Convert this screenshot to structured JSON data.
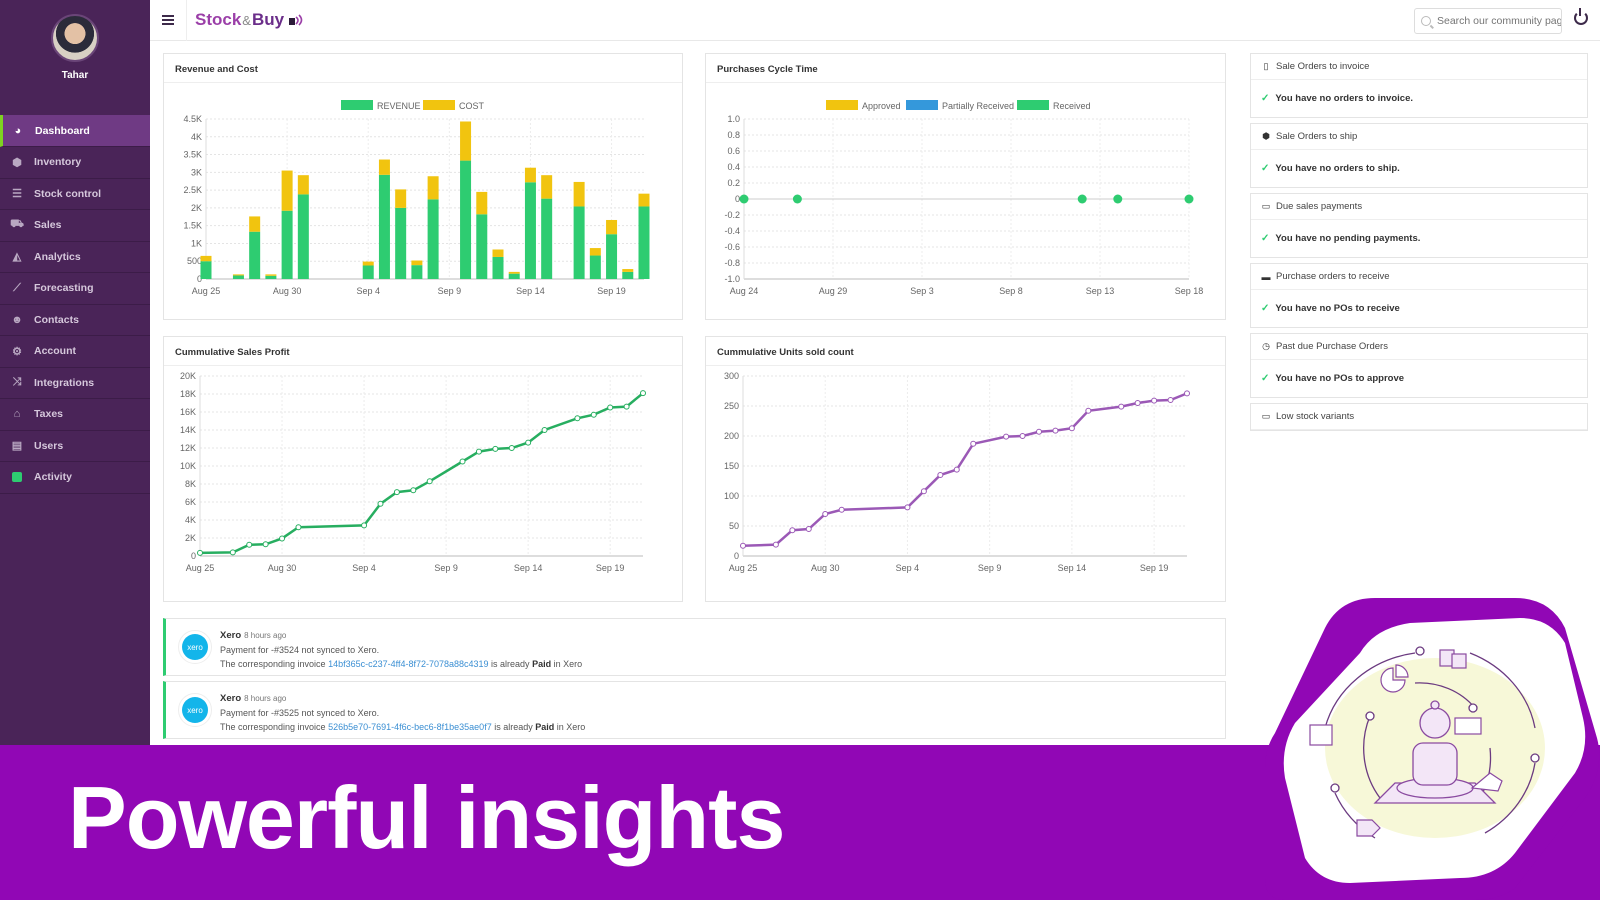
{
  "sidebar": {
    "user_name": "Tahar",
    "items": [
      {
        "label": "Dashboard",
        "icon": "dashboard-icon",
        "active": true
      },
      {
        "label": "Inventory",
        "icon": "cube-icon"
      },
      {
        "label": "Stock control",
        "icon": "sliders-icon"
      },
      {
        "label": "Sales",
        "icon": "cart-icon"
      },
      {
        "label": "Analytics",
        "icon": "area-chart-icon"
      },
      {
        "label": "Forecasting",
        "icon": "line-chart-icon"
      },
      {
        "label": "Contacts",
        "icon": "users-icon"
      },
      {
        "label": "Account",
        "icon": "cogs-icon"
      },
      {
        "label": "Integrations",
        "icon": "random-icon"
      },
      {
        "label": "Taxes",
        "icon": "bank-icon"
      },
      {
        "label": "Users",
        "icon": "building-icon"
      },
      {
        "label": "Activity",
        "icon": "green-square-icon"
      }
    ]
  },
  "header": {
    "logo": {
      "part1": "Stock",
      "part2": "&",
      "part3": "Buy"
    },
    "search_placeholder": "Search our community pag"
  },
  "colors": {
    "revenue": "#2ecc71",
    "cost": "#f1c40f",
    "approved": "#f1c40f",
    "partially_received": "#3498db",
    "received": "#2ecc71",
    "profit_line": "#27ae60",
    "units_line": "#9b59b6",
    "brand_purple": "#9107b5",
    "sidebar": "#4a2458"
  },
  "chart_data": [
    {
      "type": "bar",
      "stacked": true,
      "title": "Revenue and Cost",
      "categories": [
        "Aug 25",
        "Aug 27",
        "Aug 28",
        "Aug 29",
        "Aug 30",
        "Aug 31",
        "Sep 4",
        "Sep 5",
        "Sep 6",
        "Sep 7",
        "Sep 8",
        "Sep 10",
        "Sep 11",
        "Sep 12",
        "Sep 13",
        "Sep 14",
        "Sep 15",
        "Sep 17",
        "Sep 18",
        "Sep 19",
        "Sep 20",
        "Sep 21"
      ],
      "day_offsets": [
        0,
        2,
        3,
        4,
        5,
        6,
        10,
        11,
        12,
        13,
        14,
        16,
        17,
        18,
        19,
        20,
        21,
        23,
        24,
        25,
        26,
        27
      ],
      "series": [
        {
          "name": "REVENUE",
          "values": [
            500,
            100,
            1330,
            90,
            1920,
            2380,
            380,
            2930,
            2000,
            390,
            2240,
            3330,
            1820,
            620,
            150,
            2720,
            2260,
            2040,
            660,
            1260,
            200,
            2040
          ]
        },
        {
          "name": "COST",
          "values": [
            150,
            30,
            430,
            40,
            1130,
            540,
            110,
            430,
            520,
            130,
            650,
            1100,
            630,
            210,
            50,
            410,
            660,
            690,
            210,
            400,
            80,
            360
          ]
        }
      ],
      "yticks": [
        "0",
        "500",
        "1K",
        "1.5K",
        "2K",
        "2.5K",
        "3K",
        "3.5K",
        "4K",
        "4.5K"
      ],
      "xticks": [
        "Aug 25",
        "Aug 30",
        "Sep 4",
        "Sep 9",
        "Sep 14",
        "Sep 19"
      ],
      "ylim": [
        0,
        4500
      ],
      "legend": "top-center",
      "grid": true
    },
    {
      "type": "scatter",
      "title": "Purchases Cycle Time",
      "series": [
        {
          "name": "Approved",
          "values": []
        },
        {
          "name": "Partially Received",
          "values": []
        },
        {
          "name": "Received",
          "x": [
            "Aug 24",
            "Aug 27",
            "Sep 12",
            "Sep 14",
            "Sep 18"
          ],
          "day_offsets": [
            0,
            3,
            19,
            21,
            25
          ],
          "values": [
            0,
            0,
            0,
            0,
            0
          ]
        }
      ],
      "yticks": [
        "1.0",
        "0.8",
        "0.6",
        "0.4",
        "0.2",
        "0",
        "-0.2",
        "-0.4",
        "-0.6",
        "-0.8",
        "-1.0"
      ],
      "xticks": [
        "Aug 24",
        "Aug 29",
        "Sep 3",
        "Sep 8",
        "Sep 13",
        "Sep 18"
      ],
      "ylim": [
        -1,
        1
      ],
      "legend": "top-center",
      "grid": true
    },
    {
      "type": "line",
      "title": "Cummulative Sales Profit",
      "x": [
        "Aug 25",
        "Aug 27",
        "Aug 28",
        "Aug 29",
        "Aug 30",
        "Aug 31",
        "Sep 4",
        "Sep 5",
        "Sep 6",
        "Sep 7",
        "Sep 8",
        "Sep 10",
        "Sep 11",
        "Sep 12",
        "Sep 13",
        "Sep 14",
        "Sep 15",
        "Sep 17",
        "Sep 18",
        "Sep 19",
        "Sep 20",
        "Sep 21"
      ],
      "day_offsets": [
        0,
        2,
        3,
        4,
        5,
        6,
        10,
        11,
        12,
        13,
        14,
        16,
        17,
        18,
        19,
        20,
        21,
        23,
        24,
        25,
        26,
        27
      ],
      "values": [
        350,
        400,
        1250,
        1300,
        1950,
        3200,
        3400,
        5800,
        7100,
        7300,
        8300,
        10500,
        11600,
        11900,
        12000,
        12600,
        14000,
        15300,
        15700,
        16500,
        16600,
        18100
      ],
      "yticks": [
        "0",
        "2K",
        "4K",
        "6K",
        "8K",
        "10K",
        "12K",
        "14K",
        "16K",
        "18K",
        "20K"
      ],
      "xticks": [
        "Aug 25",
        "Aug 30",
        "Sep 4",
        "Sep 9",
        "Sep 14",
        "Sep 19"
      ],
      "ylim": [
        0,
        20000
      ],
      "grid": true
    },
    {
      "type": "line",
      "title": "Cummulative Units sold count",
      "x": [
        "Aug 25",
        "Aug 27",
        "Aug 28",
        "Aug 29",
        "Aug 30",
        "Aug 31",
        "Sep 4",
        "Sep 5",
        "Sep 6",
        "Sep 7",
        "Sep 8",
        "Sep 10",
        "Sep 11",
        "Sep 12",
        "Sep 13",
        "Sep 14",
        "Sep 15",
        "Sep 17",
        "Sep 18",
        "Sep 19",
        "Sep 20",
        "Sep 21"
      ],
      "day_offsets": [
        0,
        2,
        3,
        4,
        5,
        6,
        10,
        11,
        12,
        13,
        14,
        16,
        17,
        18,
        19,
        20,
        21,
        23,
        24,
        25,
        26,
        27
      ],
      "values": [
        17,
        19,
        43,
        45,
        70,
        77,
        81,
        108,
        135,
        144,
        187,
        199,
        200,
        207,
        209,
        213,
        242,
        249,
        255,
        259,
        260,
        271
      ],
      "yticks": [
        "0",
        "50",
        "100",
        "150",
        "200",
        "250",
        "300"
      ],
      "xticks": [
        "Aug 25",
        "Aug 30",
        "Sep 4",
        "Sep 9",
        "Sep 14",
        "Sep 19"
      ],
      "ylim": [
        0,
        300
      ],
      "grid": true
    }
  ],
  "widgets": [
    {
      "title": "Sale Orders to invoice",
      "icon": "file-icon",
      "message": "You have no orders to invoice."
    },
    {
      "title": "Sale Orders to ship",
      "icon": "cube-icon",
      "message": "You have no orders to ship."
    },
    {
      "title": "Due sales payments",
      "icon": "credit-card-icon",
      "message": "You have no pending payments."
    },
    {
      "title": "Purchase orders to receive",
      "icon": "inbox-icon",
      "message": "You have no POs to receive"
    },
    {
      "title": "Past due Purchase Orders",
      "icon": "clock-icon",
      "message": "You have no POs to approve"
    },
    {
      "title": "Low stock variants",
      "icon": "battery-icon"
    }
  ],
  "notifications": [
    {
      "source": "Xero",
      "logo_text": "xero",
      "time": "8 hours ago",
      "line1": "Payment for -#3524 not synced to Xero.",
      "line2_prefix": "The corresponding invoice ",
      "invoice_id": "14bf365c-c237-4ff4-8f72-7078a88c4319",
      "line2_mid": " is already ",
      "status": "Paid",
      "line2_suffix": " in Xero"
    },
    {
      "source": "Xero",
      "logo_text": "xero",
      "time": "8 hours ago",
      "line1": "Payment for -#3525 not synced to Xero.",
      "line2_prefix": "The corresponding invoice ",
      "invoice_id": "526b5e70-7691-4f6c-bec6-8f1be35ae0f7",
      "line2_mid": " is already ",
      "status": "Paid",
      "line2_suffix": " in Xero"
    }
  ],
  "banner": {
    "text": "Powerful insights"
  }
}
